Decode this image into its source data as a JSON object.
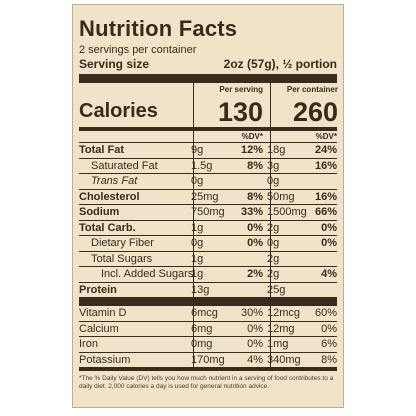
{
  "title": "Nutrition Facts",
  "servings_per_container": "2 servings per container",
  "serving_size_label": "Serving size",
  "serving_size_value": "2oz (57g), ½ portion",
  "header": {
    "per_serving": "Per serving",
    "per_container": "Per container",
    "calories_label": "Calories",
    "calories_serving": "130",
    "calories_container": "260",
    "dv_serving": "%DV*",
    "dv_container": "%DV*"
  },
  "nutrients": [
    {
      "label": "Total Fat",
      "q1": "9g",
      "p1": "12%",
      "q2": "18g",
      "p2": "24%"
    },
    {
      "label": "Saturated Fat",
      "q1": "1.5g",
      "p1": "8%",
      "q2": "3g",
      "p2": "16%"
    },
    {
      "label": "Trans Fat",
      "q1": "0g",
      "p1": "",
      "q2": "0g",
      "p2": ""
    },
    {
      "label": "Cholesterol",
      "q1": "25mg",
      "p1": "8%",
      "q2": "50mg",
      "p2": "16%"
    },
    {
      "label": "Sodium",
      "q1": "750mg",
      "p1": "33%",
      "q2": "1500mg",
      "p2": "66%"
    },
    {
      "label": "Total Carb.",
      "q1": "1g",
      "p1": "0%",
      "q2": "2g",
      "p2": "0%"
    },
    {
      "label": "Dietary Fiber",
      "q1": "0g",
      "p1": "0%",
      "q2": "0g",
      "p2": "0%"
    },
    {
      "label": "Total Sugars",
      "q1": "1g",
      "p1": "",
      "q2": "2g",
      "p2": ""
    },
    {
      "label": "Incl. Added Sugars",
      "q1": "1g",
      "p1": "2%",
      "q2": "2g",
      "p2": "4%"
    },
    {
      "label": "Protein",
      "q1": "13g",
      "p1": "",
      "q2": "25g",
      "p2": ""
    }
  ],
  "vitamins": [
    {
      "label": "Vitamin D",
      "q1": "6mcg",
      "p1": "30%",
      "q2": "12mcg",
      "p2": "60%"
    },
    {
      "label": "Calcium",
      "q1": "6mg",
      "p1": "0%",
      "q2": "12mg",
      "p2": "0%"
    },
    {
      "label": "Iron",
      "q1": "0mg",
      "p1": "0%",
      "q2": "1mg",
      "p2": "6%"
    },
    {
      "label": "Potassium",
      "q1": "170mg",
      "p1": "4%",
      "q2": "340mg",
      "p2": "8%"
    }
  ],
  "footnote": "*The % Daily Value (DV) tells you how much nutrient in a serving of food contributes to a daily diet. 2,000 calories a day is used for general nutrition advice."
}
